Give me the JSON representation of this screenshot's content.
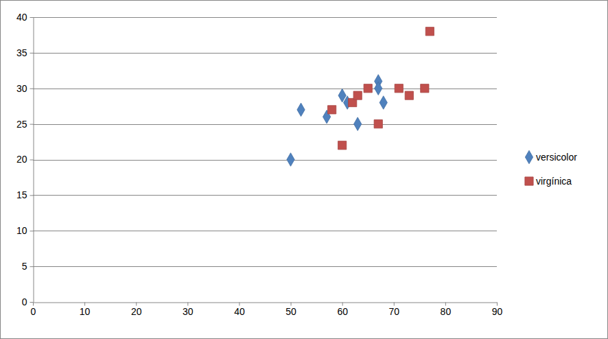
{
  "chart_data": {
    "type": "scatter",
    "xlim": [
      0,
      90
    ],
    "xticks": [
      0,
      10,
      20,
      30,
      40,
      50,
      60,
      70,
      80,
      90
    ],
    "ylim": [
      0,
      40
    ],
    "yticks": [
      0,
      5,
      10,
      15,
      20,
      25,
      30,
      35,
      40
    ],
    "grid": true,
    "legend": "right",
    "series": [
      {
        "name": "versicolor",
        "color": "#4f81bd",
        "marker": "diamond",
        "x": [
          50,
          52,
          57,
          60,
          61,
          63,
          67,
          67,
          68
        ],
        "values": [
          20,
          27,
          26,
          29,
          28,
          25,
          31,
          30,
          28
        ]
      },
      {
        "name": "virgínica",
        "color": "#c0504d",
        "marker": "square",
        "x": [
          58,
          60,
          62,
          63,
          65,
          67,
          71,
          73,
          76,
          77
        ],
        "values": [
          27,
          22,
          28,
          29,
          30,
          25,
          30,
          29,
          30,
          38
        ]
      }
    ]
  }
}
